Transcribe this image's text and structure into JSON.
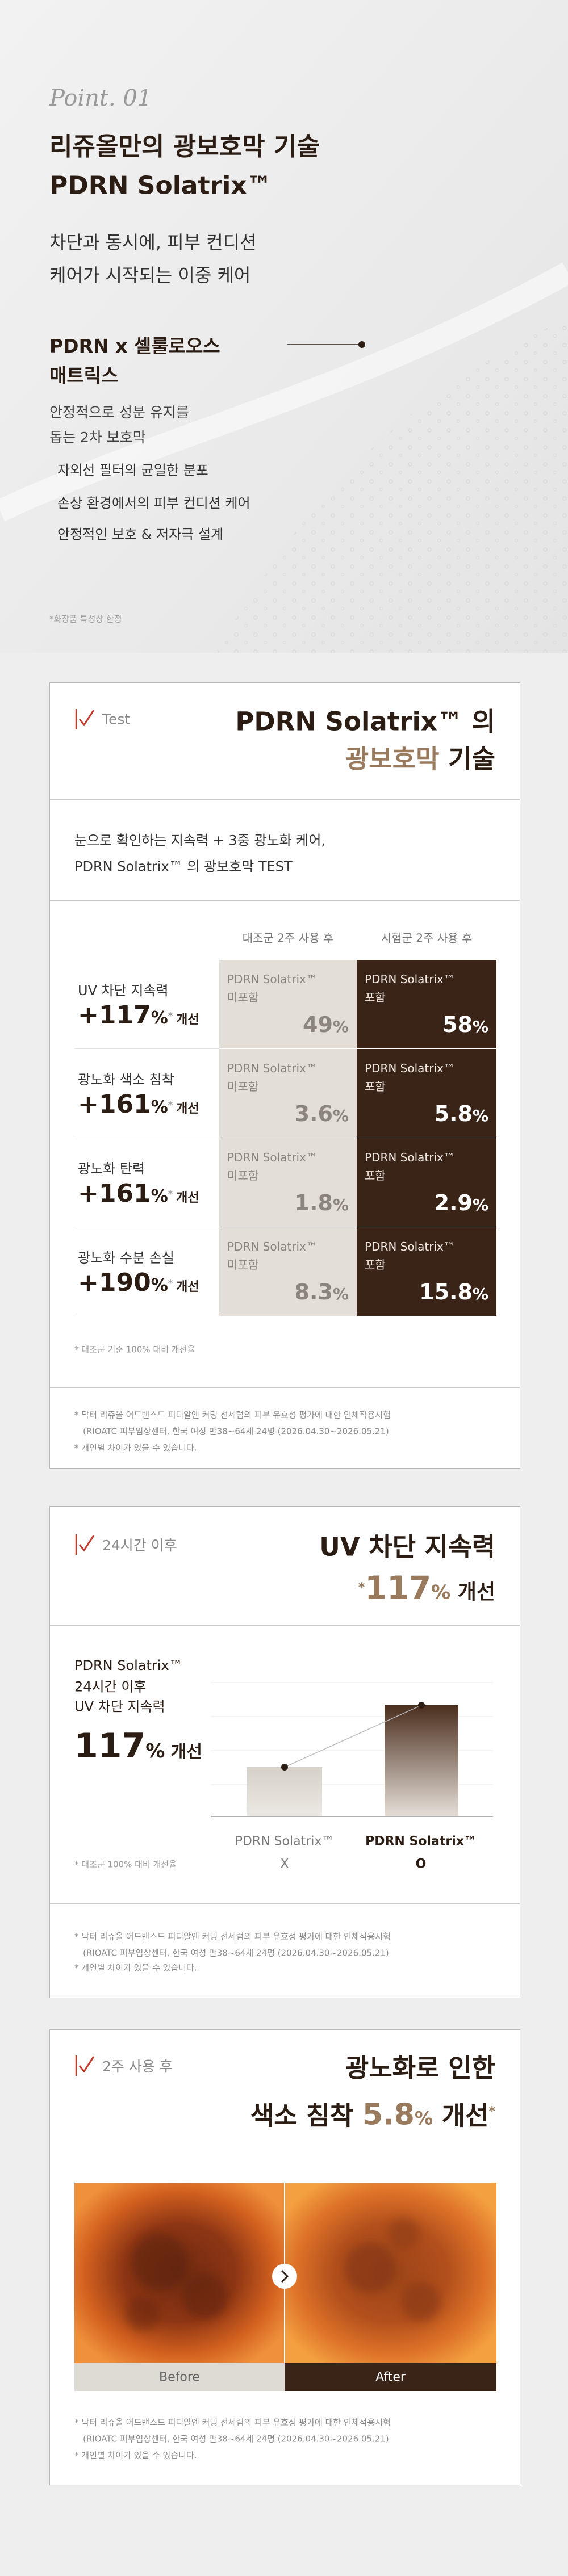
{
  "hero": {
    "point": "Point. 01",
    "title": [
      "리쥬올만의 광보호막 기술",
      "PDRN Solatrix™"
    ],
    "subtitle": [
      "차단과 동시에, 피부 컨디션",
      "케어가 시작되는 이중 케어"
    ],
    "feature": {
      "title": [
        "PDRN x 셀룰로오스",
        "매트릭스"
      ],
      "description": [
        "안정적으로 성분 유지를",
        "돕는 2차 보호막"
      ],
      "bullets": [
        "자외선 필터의 균일한 분포",
        "손상 환경에서의 피부 컨디션 케어",
        "안정적인 보호 & 저자극 설계"
      ]
    },
    "note": "*화장품 특성상 한정"
  },
  "test_card": {
    "tag": "Test",
    "title_line1": "PDRN Solatrix™ 의",
    "title_highlight": "광보호막",
    "title_rest": "기술",
    "intro": [
      "눈으로 확인하는 지속력 + 3중 광노화 케어,",
      "PDRN Solatrix™ 의 광보호막 TEST"
    ],
    "columns": [
      "대조군 2주 사용 후",
      "시험군 2주 사용 후"
    ],
    "rows": [
      {
        "label": "UV 차단 지속력",
        "improvement": "+117",
        "unit": "%",
        "mark": "*",
        "suffix": "개선",
        "control": {
          "name": "PDRN Solatrix™",
          "status": "미포함",
          "value": "49",
          "unit": "%"
        },
        "test": {
          "name": "PDRN Solatrix™",
          "status": "포함",
          "value": "58",
          "unit": "%"
        }
      },
      {
        "label": "광노화 색소 침착",
        "improvement": "+161",
        "unit": "%",
        "mark": "*",
        "suffix": "개선",
        "control": {
          "name": "PDRN Solatrix™",
          "status": "미포함",
          "value": "3.6",
          "unit": "%"
        },
        "test": {
          "name": "PDRN Solatrix™",
          "status": "포함",
          "value": "5.8",
          "unit": "%"
        }
      },
      {
        "label": "광노화 탄력",
        "improvement": "+161",
        "unit": "%",
        "mark": "*",
        "suffix": "개선",
        "control": {
          "name": "PDRN Solatrix™",
          "status": "미포함",
          "value": "1.8",
          "unit": "%"
        },
        "test": {
          "name": "PDRN Solatrix™",
          "status": "포함",
          "value": "2.9",
          "unit": "%"
        }
      },
      {
        "label": "광노화 수분 손실",
        "improvement": "+190",
        "unit": "%",
        "mark": "*",
        "suffix": "개선",
        "control": {
          "name": "PDRN Solatrix™",
          "status": "미포함",
          "value": "8.3",
          "unit": "%"
        },
        "test": {
          "name": "PDRN Solatrix™",
          "status": "포함",
          "value": "15.8",
          "unit": "%"
        }
      }
    ],
    "table_note": "* 대조군 기준 100% 대비 개선율",
    "footnotes": [
      "* 닥터 리쥬올 어드밴스드 피디알엔 커밍 선세럼의 피부 유효성 평가에 대한 인체적용시험",
      "(RIOATC 피부임상센터, 한국 여성 만38~64세 24명 (2026.04.30~2026.05.21)",
      "* 개인별 차이가 있을 수 있습니다."
    ]
  },
  "uv_card": {
    "tag": "24시간 이후",
    "title": "UV 차단 지속력",
    "headline": {
      "mark": "*",
      "value": "117",
      "unit": "%",
      "suffix": "개선"
    },
    "left_text": [
      "PDRN Solatrix™",
      "24시간 이후",
      "UV 차단 지속력"
    ],
    "big": {
      "value": "117",
      "unit": "%",
      "suffix": "개선"
    },
    "bar_labels": [
      {
        "name": "PDRN Solatrix™",
        "status": "X"
      },
      {
        "name": "PDRN Solatrix™",
        "status": "O"
      }
    ],
    "note": "* 대조군 100% 대비 개선율",
    "footnotes": [
      "* 닥터 리쥬올 어드밴스드 피디알엔 커밍 선세럼의 피부 유효성 평가에 대한 인체적용시험",
      "(RIOATC 피부임상센터, 한국 여성 만38~64세 24명 (2026.04.30~2026.05.21)",
      "* 개인별 차이가 있을 수 있습니다."
    ]
  },
  "pigment_card": {
    "tag": "2주 사용 후",
    "title_line1": "광노화로 인한",
    "title_line2": {
      "prefix": "색소 침착",
      "value": "5.8",
      "unit": "%",
      "suffix": "개선",
      "mark": "*"
    },
    "labels": [
      "Before",
      "After"
    ],
    "footnotes": [
      "* 닥터 리쥬올 어드밴스드 피디알엔 커밍 선세럼의 피부 유효성 평가에 대한 인체적용시험",
      "(RIOATC 피부임상센터, 한국 여성 만38~64세 24명 (2026.04.30~2026.05.21)",
      "* 개인별 차이가 있을 수 있습니다."
    ]
  }
}
